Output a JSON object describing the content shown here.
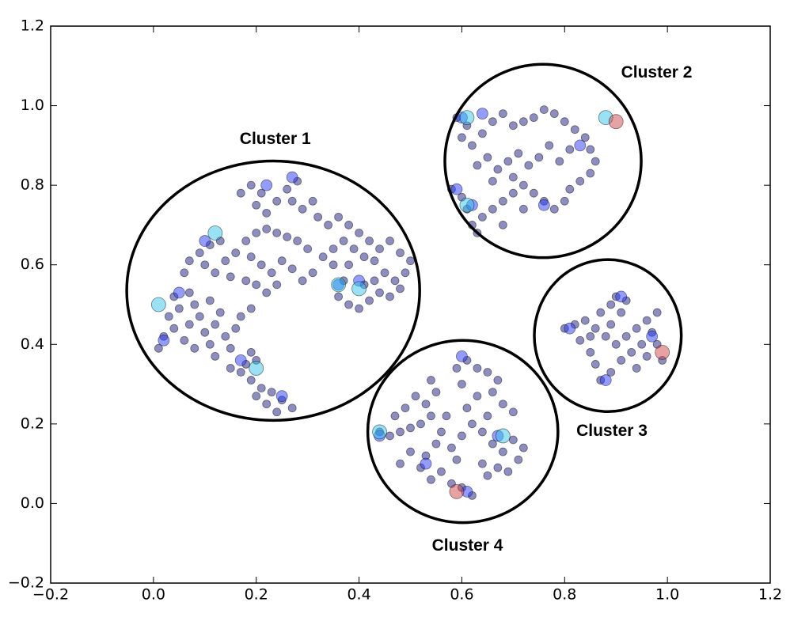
{
  "chart_data": {
    "type": "scatter",
    "xlim": [
      -0.2,
      1.2
    ],
    "ylim": [
      -0.2,
      1.2
    ],
    "xticks": [
      {
        "value": -0.2,
        "label": "−0.2"
      },
      {
        "value": 0,
        "label": "0.0"
      },
      0.2,
      0.4,
      0.6,
      0.8,
      {
        "value": 1,
        "label": "1.0"
      },
      1.2
    ],
    "yticks": [
      {
        "value": -0.2,
        "label": "−0.2"
      },
      {
        "value": 0,
        "label": "0.0"
      },
      0.2,
      0.4,
      0.6,
      0.8,
      {
        "value": 1,
        "label": "1.0"
      },
      1.2
    ],
    "grid": false,
    "alpha": 0.5,
    "series": [
      {
        "color": "#1c1c80",
        "marker_size": 5,
        "x": [
          0.01,
          0.02,
          0.04,
          0.03,
          0.05,
          0.04,
          0.07,
          0.08,
          0.09,
          0.07,
          0.1,
          0.12,
          0.13,
          0.11,
          0.06,
          0.08,
          0.11,
          0.14,
          0.15,
          0.12,
          0.06,
          0.07,
          0.09,
          0.11,
          0.13,
          0.1,
          0.12,
          0.14,
          0.16,
          0.15,
          0.18,
          0.2,
          0.22,
          0.24,
          0.26,
          0.28,
          0.3,
          0.19,
          0.21,
          0.23,
          0.25,
          0.27,
          0.29,
          0.31,
          0.33,
          0.35,
          0.18,
          0.2,
          0.22,
          0.24,
          0.17,
          0.19,
          0.21,
          0.2,
          0.22,
          0.24,
          0.26,
          0.28,
          0.27,
          0.29,
          0.31,
          0.32,
          0.34,
          0.36,
          0.38,
          0.4,
          0.42,
          0.44,
          0.46,
          0.48,
          0.5,
          0.49,
          0.47,
          0.45,
          0.43,
          0.41,
          0.39,
          0.37,
          0.35,
          0.38,
          0.36,
          0.38,
          0.4,
          0.42,
          0.44,
          0.46,
          0.41,
          0.37,
          0.43,
          0.48,
          0.15,
          0.17,
          0.19,
          0.21,
          0.23,
          0.25,
          0.27,
          0.24,
          0.22,
          0.2,
          0.18,
          0.19,
          0.2,
          0.16,
          0.17,
          0.19,
          0.59,
          0.61,
          0.6,
          0.62,
          0.64,
          0.66,
          0.68,
          0.7,
          0.72,
          0.74,
          0.76,
          0.78,
          0.8,
          0.82,
          0.84,
          0.85,
          0.86,
          0.85,
          0.83,
          0.81,
          0.8,
          0.78,
          0.76,
          0.74,
          0.72,
          0.7,
          0.68,
          0.66,
          0.64,
          0.62,
          0.61,
          0.6,
          0.58,
          0.63,
          0.65,
          0.67,
          0.69,
          0.71,
          0.73,
          0.75,
          0.77,
          0.7,
          0.72,
          0.66,
          0.63,
          0.68,
          0.79,
          0.81,
          0.8,
          0.82,
          0.84,
          0.86,
          0.85,
          0.83,
          0.87,
          0.89,
          0.9,
          0.92,
          0.91,
          0.89,
          0.88,
          0.9,
          0.92,
          0.94,
          0.96,
          0.98,
          0.97,
          0.95,
          0.93,
          0.91,
          0.89,
          0.87,
          0.86,
          0.94,
          0.96,
          0.98,
          0.99,
          0.85,
          0.44,
          0.46,
          0.48,
          0.5,
          0.52,
          0.54,
          0.53,
          0.55,
          0.54,
          0.51,
          0.49,
          0.47,
          0.56,
          0.55,
          0.53,
          0.52,
          0.54,
          0.56,
          0.58,
          0.6,
          0.62,
          0.59,
          0.58,
          0.6,
          0.62,
          0.61,
          0.63,
          0.6,
          0.59,
          0.61,
          0.63,
          0.65,
          0.67,
          0.66,
          0.68,
          0.7,
          0.65,
          0.64,
          0.66,
          0.68,
          0.7,
          0.72,
          0.71,
          0.69,
          0.67,
          0.65,
          0.64,
          0.57,
          0.5,
          0.48
        ],
        "values": [
          0.39,
          0.42,
          0.44,
          0.47,
          0.49,
          0.52,
          0.53,
          0.5,
          0.47,
          0.45,
          0.43,
          0.45,
          0.48,
          0.51,
          0.41,
          0.39,
          0.4,
          0.42,
          0.39,
          0.37,
          0.58,
          0.61,
          0.63,
          0.65,
          0.66,
          0.6,
          0.58,
          0.61,
          0.63,
          0.57,
          0.66,
          0.68,
          0.69,
          0.68,
          0.67,
          0.66,
          0.64,
          0.62,
          0.6,
          0.58,
          0.61,
          0.59,
          0.56,
          0.58,
          0.62,
          0.6,
          0.56,
          0.55,
          0.53,
          0.55,
          0.78,
          0.8,
          0.78,
          0.75,
          0.73,
          0.76,
          0.79,
          0.81,
          0.76,
          0.74,
          0.76,
          0.72,
          0.7,
          0.72,
          0.7,
          0.68,
          0.66,
          0.64,
          0.66,
          0.63,
          0.61,
          0.58,
          0.56,
          0.58,
          0.61,
          0.62,
          0.64,
          0.66,
          0.64,
          0.6,
          0.52,
          0.5,
          0.49,
          0.51,
          0.53,
          0.52,
          0.55,
          0.56,
          0.56,
          0.54,
          0.34,
          0.33,
          0.31,
          0.29,
          0.28,
          0.26,
          0.24,
          0.23,
          0.25,
          0.27,
          0.35,
          0.38,
          0.36,
          0.44,
          0.47,
          0.49,
          0.97,
          0.95,
          0.92,
          0.9,
          0.93,
          0.96,
          0.98,
          0.95,
          0.96,
          0.97,
          0.99,
          0.98,
          0.96,
          0.94,
          0.92,
          0.89,
          0.86,
          0.83,
          0.81,
          0.79,
          0.76,
          0.74,
          0.76,
          0.78,
          0.8,
          0.78,
          0.76,
          0.74,
          0.72,
          0.7,
          0.74,
          0.77,
          0.79,
          0.85,
          0.87,
          0.84,
          0.86,
          0.88,
          0.85,
          0.87,
          0.9,
          0.82,
          0.74,
          0.81,
          0.68,
          0.7,
          0.86,
          0.89,
          0.44,
          0.45,
          0.46,
          0.44,
          0.42,
          0.41,
          0.48,
          0.5,
          0.52,
          0.51,
          0.48,
          0.45,
          0.42,
          0.4,
          0.42,
          0.44,
          0.46,
          0.48,
          0.43,
          0.4,
          0.38,
          0.36,
          0.33,
          0.31,
          0.35,
          0.34,
          0.37,
          0.4,
          0.36,
          0.38,
          0.18,
          0.17,
          0.18,
          0.19,
          0.2,
          0.22,
          0.25,
          0.28,
          0.31,
          0.27,
          0.24,
          0.22,
          0.18,
          0.15,
          0.12,
          0.09,
          0.06,
          0.08,
          0.05,
          0.04,
          0.02,
          0.11,
          0.14,
          0.17,
          0.2,
          0.24,
          0.27,
          0.3,
          0.34,
          0.36,
          0.34,
          0.33,
          0.31,
          0.28,
          0.25,
          0.23,
          0.22,
          0.18,
          0.15,
          0.13,
          0.16,
          0.14,
          0.11,
          0.08,
          0.09,
          0.07,
          0.1,
          0.22,
          0.13,
          0.1
        ]
      },
      {
        "color": "#2a3cff",
        "marker_size": 7,
        "x": [
          0.02,
          0.05,
          0.1,
          0.22,
          0.27,
          0.36,
          0.4,
          0.17,
          0.25,
          0.6,
          0.64,
          0.59,
          0.62,
          0.76,
          0.83,
          0.81,
          0.91,
          0.97,
          0.88,
          0.44,
          0.6,
          0.67,
          0.61,
          0.53
        ],
        "values": [
          0.41,
          0.53,
          0.66,
          0.8,
          0.82,
          0.55,
          0.56,
          0.36,
          0.27,
          0.97,
          0.98,
          0.79,
          0.75,
          0.75,
          0.9,
          0.44,
          0.52,
          0.42,
          0.31,
          0.17,
          0.37,
          0.17,
          0.03,
          0.1
        ]
      },
      {
        "color": "#33c4e8",
        "marker_size": 9,
        "x": [
          0.01,
          0.12,
          0.2,
          0.36,
          0.61,
          0.61,
          0.44,
          0.68,
          0.88,
          0.4
        ],
        "values": [
          0.5,
          0.68,
          0.34,
          0.55,
          0.97,
          0.75,
          0.18,
          0.17,
          0.97,
          0.54
        ]
      },
      {
        "color": "#d04848",
        "marker_size": 9,
        "x": [
          0.9,
          0.99,
          0.59
        ],
        "values": [
          0.96,
          0.38,
          0.03
        ]
      }
    ],
    "annotations": [
      {
        "text": "Cluster 1",
        "x": 0.237,
        "y": 0.915,
        "ellipse": {
          "cx": 0.233,
          "cy": 0.535,
          "rx": 0.285,
          "ry": 0.326
        }
      },
      {
        "text": "Cluster 2",
        "x": 0.979,
        "y": 1.082,
        "ellipse": {
          "cx": 0.758,
          "cy": 0.861,
          "rx": 0.191,
          "ry": 0.243
        }
      },
      {
        "text": "Cluster 3",
        "x": 0.892,
        "y": 0.181,
        "ellipse": {
          "cx": 0.884,
          "cy": 0.422,
          "rx": 0.143,
          "ry": 0.191
        }
      },
      {
        "text": "Cluster 4",
        "x": 0.611,
        "y": -0.107,
        "ellipse": {
          "cx": 0.602,
          "cy": 0.181,
          "rx": 0.185,
          "ry": 0.229
        }
      }
    ]
  }
}
